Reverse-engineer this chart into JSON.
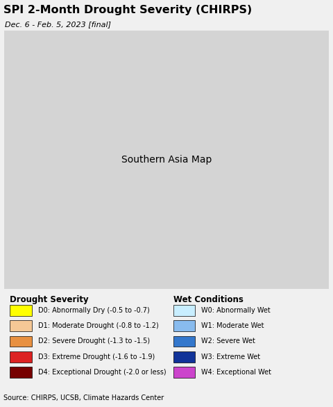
{
  "title": "SPI 2-Month Drought Severity (CHIRPS)",
  "subtitle": "Dec. 6 - Feb. 5, 2023 [final]",
  "source": "Source: CHIRPS, UCSB, Climate Hazards Center",
  "background_color": "#f0f0f0",
  "map_ocean_color": "#b8dde8",
  "map_land_color": "#d4d4d4",
  "legend_drought": [
    {
      "code": "D0",
      "label": "D0: Abnormally Dry (-0.5 to -0.7)",
      "color": "#ffff00"
    },
    {
      "code": "D1",
      "label": "D1: Moderate Drought (-0.8 to -1.2)",
      "color": "#f5c896"
    },
    {
      "code": "D2",
      "label": "D2: Severe Drought (-1.3 to -1.5)",
      "color": "#e89040"
    },
    {
      "code": "D3",
      "label": "D3: Extreme Drought (-1.6 to -1.9)",
      "color": "#dd2222"
    },
    {
      "code": "D4",
      "label": "D4: Exceptional Drought (-2.0 or less)",
      "color": "#770000"
    }
  ],
  "legend_wet": [
    {
      "code": "W0",
      "label": "W0: Abnormally Wet",
      "color": "#c8eeff"
    },
    {
      "code": "W1",
      "label": "W1: Moderate Wet",
      "color": "#88bbee"
    },
    {
      "code": "W2",
      "label": "W2: Severe Wet",
      "color": "#3377cc"
    },
    {
      "code": "W3",
      "label": "W3: Extreme Wet",
      "color": "#113399"
    },
    {
      "code": "W4",
      "label": "W4: Exceptional Wet",
      "color": "#cc44cc"
    }
  ],
  "legend_drought_header": "Drought Severity",
  "legend_wet_header": "Wet Conditions",
  "title_fontsize": 11.5,
  "subtitle_fontsize": 8,
  "source_fontsize": 7,
  "legend_header_fontsize": 8.5,
  "legend_item_fontsize": 7,
  "extent_lon": [
    58,
    102
  ],
  "extent_lat": [
    5,
    40
  ],
  "figsize": [
    4.8,
    5.86
  ],
  "dpi": 100
}
